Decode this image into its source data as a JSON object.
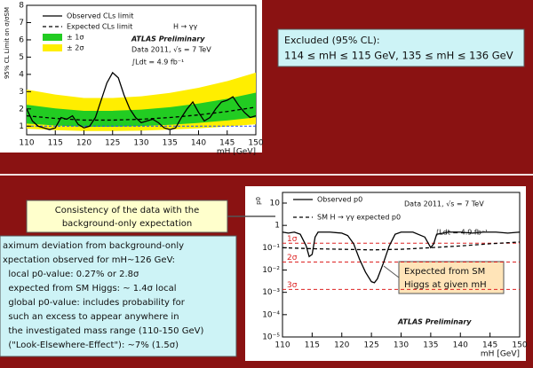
{
  "excluded_box": {
    "title": "Excluded (95% CL):",
    "text": "114 ≤ mH ≤ 115 GeV, 135 ≤ mH ≤ 136 GeV"
  },
  "consistency_box": {
    "lines": [
      "Consistency of the data with the",
      "background-only expectation"
    ]
  },
  "deviation_box": {
    "lines": [
      "aximum deviation from background-only",
      "xpectation observed for mH~126 GeV:",
      "  local p0-value: 0.27% or 2.8σ",
      "  expected from SM Higgs: ~ 1.4σ local",
      "  global p0-value: includes probability for",
      "  such an excess to appear anywhere in",
      "  the investigated mass range (110-150 GeV)",
      "  (\"Look-Elsewhere-Effect\"): ~7% (1.5σ)"
    ]
  },
  "expected_box": {
    "lines": [
      "Expected from SM",
      "Higgs at given mH"
    ]
  },
  "top_plot": {
    "type": "line",
    "x_label": "mH [GeV]",
    "y_label": "95% CL Limit on σ/σSM",
    "annotations": [
      "H → γγ",
      "ATLAS Preliminary",
      "Data 2011, √s = 7 TeV",
      "∫Ldt = 4.9 fb⁻¹"
    ],
    "xlim": [
      110,
      150
    ],
    "ylim": [
      0.5,
      8
    ],
    "xticks": [
      110,
      115,
      120,
      125,
      130,
      135,
      140,
      145,
      150
    ],
    "yticks": [
      1,
      2,
      3,
      4,
      5,
      6,
      7,
      8
    ],
    "reference_line": {
      "value": 1,
      "color": "#2244ff"
    },
    "bands": [
      {
        "name": "± 2σ",
        "color": "#ffee00",
        "x": [
          110,
          115,
          120,
          125,
          130,
          135,
          140,
          145,
          150
        ],
        "low": [
          0.85,
          0.77,
          0.72,
          0.72,
          0.74,
          0.8,
          0.87,
          0.98,
          1.11
        ],
        "high": [
          3.12,
          2.83,
          2.63,
          2.63,
          2.73,
          2.93,
          3.22,
          3.61,
          4.1
        ]
      },
      {
        "name": "± 1σ",
        "color": "#22cc22",
        "x": [
          110,
          115,
          120,
          125,
          130,
          135,
          140,
          145,
          150
        ],
        "low": [
          1.15,
          1.04,
          0.97,
          0.97,
          1.01,
          1.08,
          1.19,
          1.33,
          1.51
        ],
        "high": [
          2.24,
          2.03,
          1.89,
          1.89,
          1.96,
          2.1,
          2.31,
          2.59,
          2.94
        ]
      }
    ],
    "series": [
      {
        "name": "Observed CLs limit",
        "color": "#000000",
        "style": "solid",
        "x": [
          110,
          111,
          112,
          113,
          114,
          115,
          116,
          117,
          118,
          119,
          120,
          121,
          122,
          123,
          124,
          125,
          126,
          127,
          128,
          129,
          130,
          131,
          132,
          133,
          134,
          135,
          136,
          137,
          138,
          139,
          140,
          141,
          142,
          143,
          144,
          145,
          146,
          147,
          148,
          149,
          150
        ],
        "values": [
          2.0,
          1.3,
          1.0,
          0.9,
          0.8,
          0.9,
          1.5,
          1.4,
          1.6,
          1.1,
          0.9,
          1.0,
          1.5,
          2.5,
          3.5,
          4.1,
          3.8,
          2.8,
          2.0,
          1.5,
          1.2,
          1.3,
          1.4,
          1.2,
          0.9,
          0.8,
          0.9,
          1.5,
          2.0,
          2.4,
          1.8,
          1.3,
          1.5,
          2.0,
          2.4,
          2.5,
          2.7,
          2.2,
          1.8,
          1.5,
          1.6
        ]
      },
      {
        "name": "Expected CLs limit",
        "color": "#000000",
        "style": "dashed",
        "x": [
          110,
          115,
          120,
          125,
          130,
          135,
          140,
          145,
          150
        ],
        "values": [
          1.6,
          1.45,
          1.35,
          1.35,
          1.4,
          1.5,
          1.65,
          1.85,
          2.1
        ]
      }
    ]
  },
  "bottom_plot": {
    "type": "line",
    "x_label": "mH [GeV]",
    "y_label": "p0",
    "annotations": [
      "Data 2011, √s = 7 TeV",
      "∫Ldt = 4.9 fb⁻¹",
      "ATLAS Preliminary"
    ],
    "log_y": true,
    "xlim": [
      110,
      150
    ],
    "ylim": [
      1e-05,
      30
    ],
    "xticks": [
      110,
      115,
      120,
      125,
      130,
      135,
      140,
      145,
      150
    ],
    "yticks": [
      10,
      1,
      {
        "value": 0.1,
        "label": "10⁻¹"
      },
      {
        "value": 0.01,
        "label": "10⁻²"
      },
      {
        "value": 0.001,
        "label": "10⁻³"
      },
      {
        "value": 0.0001,
        "label": "10⁻⁴"
      },
      {
        "value": 1e-05,
        "label": "10⁻⁵"
      }
    ],
    "sigma_lines": [
      {
        "value": 0.159,
        "label": "1σ"
      },
      {
        "value": 0.0228,
        "label": "2σ"
      },
      {
        "value": 0.00135,
        "label": "3σ"
      }
    ],
    "sigma_color": "#dd2222",
    "series": [
      {
        "name": "Observed p0",
        "color": "#000000",
        "style": "solid",
        "x": [
          110,
          111,
          112,
          113,
          114,
          114.5,
          115,
          115.5,
          116,
          118,
          120,
          121,
          122,
          123,
          124,
          125,
          125.5,
          126,
          127,
          128,
          129,
          130,
          132,
          134,
          135,
          135.5,
          136,
          138,
          140,
          142,
          144,
          146,
          148,
          150
        ],
        "values": [
          0.5,
          0.45,
          0.5,
          0.4,
          0.12,
          0.04,
          0.05,
          0.3,
          0.5,
          0.5,
          0.45,
          0.35,
          0.15,
          0.03,
          0.008,
          0.003,
          0.0027,
          0.004,
          0.02,
          0.12,
          0.4,
          0.5,
          0.5,
          0.3,
          0.1,
          0.15,
          0.4,
          0.5,
          0.5,
          0.45,
          0.5,
          0.5,
          0.45,
          0.5
        ]
      },
      {
        "name": "SM H → γγ expected p0",
        "color": "#000000",
        "style": "dashed",
        "x": [
          110,
          115,
          120,
          125,
          130,
          135,
          140,
          145,
          150
        ],
        "values": [
          0.1,
          0.09,
          0.085,
          0.08,
          0.085,
          0.1,
          0.12,
          0.15,
          0.18
        ]
      }
    ]
  }
}
